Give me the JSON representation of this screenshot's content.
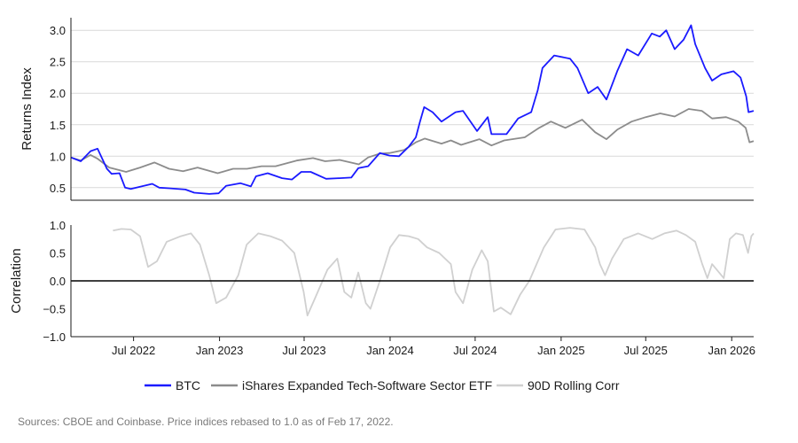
{
  "colors": {
    "btc": "#1a1aff",
    "etf": "#8c8c8c",
    "corr": "#d0d0d0",
    "grid": "#d9d9d9",
    "axis": "#1a1a1a",
    "zero_line": "#000000"
  },
  "footer": {
    "source": "Sources: CBOE and Coinbase. Price indices rebased to 1.0 as of Feb 17, 2022."
  },
  "chart_data": [
    {
      "type": "line",
      "ylabel": "Returns Index",
      "ylim": [
        0.3,
        3.2
      ],
      "yticks": [
        0.5,
        1.0,
        1.5,
        2.0,
        2.5,
        3.0
      ],
      "ytick_labels": [
        "0.5",
        "1.0",
        "1.5",
        "2.0",
        "2.5",
        "3.0"
      ],
      "xlim": [
        "2022-02-17",
        "2026-02-17"
      ],
      "grid": true,
      "series": [
        {
          "name": "BTC",
          "key": "btc",
          "points": [
            [
              "2022-02-17",
              0.98
            ],
            [
              "2022-03-10",
              0.92
            ],
            [
              "2022-03-31",
              1.08
            ],
            [
              "2022-04-15",
              1.12
            ],
            [
              "2022-05-05",
              0.8
            ],
            [
              "2022-05-15",
              0.72
            ],
            [
              "2022-06-01",
              0.73
            ],
            [
              "2022-06-13",
              0.5
            ],
            [
              "2022-06-25",
              0.48
            ],
            [
              "2022-08-10",
              0.56
            ],
            [
              "2022-08-25",
              0.5
            ],
            [
              "2022-09-15",
              0.49
            ],
            [
              "2022-10-20",
              0.47
            ],
            [
              "2022-11-08",
              0.42
            ],
            [
              "2022-12-10",
              0.4
            ],
            [
              "2022-12-30",
              0.41
            ],
            [
              "2023-01-15",
              0.53
            ],
            [
              "2023-02-15",
              0.57
            ],
            [
              "2023-03-09",
              0.52
            ],
            [
              "2023-03-20",
              0.68
            ],
            [
              "2023-04-14",
              0.73
            ],
            [
              "2023-05-15",
              0.65
            ],
            [
              "2023-06-05",
              0.63
            ],
            [
              "2023-06-25",
              0.75
            ],
            [
              "2023-07-15",
              0.75
            ],
            [
              "2023-08-17",
              0.64
            ],
            [
              "2023-09-15",
              0.65
            ],
            [
              "2023-10-10",
              0.66
            ],
            [
              "2023-10-25",
              0.81
            ],
            [
              "2023-11-15",
              0.84
            ],
            [
              "2023-12-10",
              1.05
            ],
            [
              "2023-12-31",
              1.01
            ],
            [
              "2024-01-20",
              1.0
            ],
            [
              "2024-02-10",
              1.15
            ],
            [
              "2024-02-25",
              1.3
            ],
            [
              "2024-03-05",
              1.55
            ],
            [
              "2024-03-14",
              1.78
            ],
            [
              "2024-04-01",
              1.7
            ],
            [
              "2024-04-20",
              1.55
            ],
            [
              "2024-05-20",
              1.7
            ],
            [
              "2024-06-05",
              1.72
            ],
            [
              "2024-07-05",
              1.4
            ],
            [
              "2024-07-28",
              1.62
            ],
            [
              "2024-08-05",
              1.35
            ],
            [
              "2024-09-06",
              1.35
            ],
            [
              "2024-10-01",
              1.6
            ],
            [
              "2024-10-29",
              1.7
            ],
            [
              "2024-11-12",
              2.05
            ],
            [
              "2024-11-22",
              2.4
            ],
            [
              "2024-12-17",
              2.6
            ],
            [
              "2025-01-20",
              2.55
            ],
            [
              "2025-02-05",
              2.4
            ],
            [
              "2025-02-28",
              2.0
            ],
            [
              "2025-03-20",
              2.1
            ],
            [
              "2025-04-08",
              1.9
            ],
            [
              "2025-05-01",
              2.35
            ],
            [
              "2025-05-22",
              2.7
            ],
            [
              "2025-06-15",
              2.6
            ],
            [
              "2025-07-14",
              2.95
            ],
            [
              "2025-07-31",
              2.9
            ],
            [
              "2025-08-14",
              3.0
            ],
            [
              "2025-09-01",
              2.7
            ],
            [
              "2025-09-20",
              2.85
            ],
            [
              "2025-10-06",
              3.08
            ],
            [
              "2025-10-15",
              2.78
            ],
            [
              "2025-11-05",
              2.4
            ],
            [
              "2025-11-20",
              2.2
            ],
            [
              "2025-12-10",
              2.3
            ],
            [
              "2026-01-05",
              2.35
            ],
            [
              "2026-01-20",
              2.25
            ],
            [
              "2026-02-01",
              1.95
            ],
            [
              "2026-02-06",
              1.7
            ],
            [
              "2026-02-17",
              1.72
            ]
          ]
        },
        {
          "name": "iShares Expanded Tech-Software Sector ETF",
          "key": "etf",
          "points": [
            [
              "2022-02-17",
              0.98
            ],
            [
              "2022-03-10",
              0.93
            ],
            [
              "2022-03-31",
              1.02
            ],
            [
              "2022-04-15",
              0.96
            ],
            [
              "2022-05-10",
              0.82
            ],
            [
              "2022-06-15",
              0.75
            ],
            [
              "2022-07-15",
              0.82
            ],
            [
              "2022-08-15",
              0.9
            ],
            [
              "2022-09-15",
              0.8
            ],
            [
              "2022-10-15",
              0.76
            ],
            [
              "2022-11-15",
              0.82
            ],
            [
              "2022-12-28",
              0.73
            ],
            [
              "2023-01-30",
              0.8
            ],
            [
              "2023-03-01",
              0.8
            ],
            [
              "2023-04-01",
              0.84
            ],
            [
              "2023-05-01",
              0.84
            ],
            [
              "2023-06-15",
              0.93
            ],
            [
              "2023-07-20",
              0.97
            ],
            [
              "2023-08-15",
              0.92
            ],
            [
              "2023-09-15",
              0.94
            ],
            [
              "2023-10-26",
              0.87
            ],
            [
              "2023-11-15",
              0.98
            ],
            [
              "2023-12-10",
              1.04
            ],
            [
              "2023-12-31",
              1.05
            ],
            [
              "2024-01-31",
              1.1
            ],
            [
              "2024-02-25",
              1.22
            ],
            [
              "2024-03-15",
              1.28
            ],
            [
              "2024-04-20",
              1.2
            ],
            [
              "2024-05-10",
              1.25
            ],
            [
              "2024-06-01",
              1.18
            ],
            [
              "2024-07-10",
              1.27
            ],
            [
              "2024-08-05",
              1.17
            ],
            [
              "2024-09-01",
              1.25
            ],
            [
              "2024-10-15",
              1.3
            ],
            [
              "2024-11-15",
              1.45
            ],
            [
              "2024-12-10",
              1.55
            ],
            [
              "2025-01-10",
              1.45
            ],
            [
              "2025-02-15",
              1.58
            ],
            [
              "2025-03-15",
              1.38
            ],
            [
              "2025-04-08",
              1.27
            ],
            [
              "2025-05-01",
              1.42
            ],
            [
              "2025-06-01",
              1.55
            ],
            [
              "2025-07-01",
              1.62
            ],
            [
              "2025-08-01",
              1.68
            ],
            [
              "2025-09-01",
              1.63
            ],
            [
              "2025-10-01",
              1.75
            ],
            [
              "2025-10-29",
              1.72
            ],
            [
              "2025-11-20",
              1.6
            ],
            [
              "2025-12-20",
              1.62
            ],
            [
              "2026-01-15",
              1.55
            ],
            [
              "2026-01-31",
              1.45
            ],
            [
              "2026-02-08",
              1.22
            ],
            [
              "2026-02-17",
              1.24
            ]
          ]
        }
      ]
    },
    {
      "type": "line",
      "ylabel": "Correlation",
      "ylim": [
        -1.0,
        1.0
      ],
      "yticks": [
        -1.0,
        -0.5,
        0.0,
        0.5,
        1.0
      ],
      "ytick_labels": [
        "−1.0",
        "−0.5",
        "0.0",
        "0.5",
        "1.0"
      ],
      "xlim": [
        "2022-02-17",
        "2026-02-17"
      ],
      "xticks": [
        "2022-07-01",
        "2023-01-01",
        "2023-07-01",
        "2024-01-01",
        "2024-07-01",
        "2025-01-01",
        "2025-07-01",
        "2026-01-01"
      ],
      "xtick_labels": [
        "Jul 2022",
        "Jan 2023",
        "Jul 2023",
        "Jan 2024",
        "Jul 2024",
        "Jan 2025",
        "Jul 2025",
        "Jan 2026"
      ],
      "series": [
        {
          "name": "90D Rolling Corr",
          "key": "corr",
          "points": [
            [
              "2022-05-18",
              0.9
            ],
            [
              "2022-06-05",
              0.93
            ],
            [
              "2022-06-25",
              0.92
            ],
            [
              "2022-07-15",
              0.8
            ],
            [
              "2022-08-01",
              0.25
            ],
            [
              "2022-08-20",
              0.35
            ],
            [
              "2022-09-10",
              0.7
            ],
            [
              "2022-10-10",
              0.8
            ],
            [
              "2022-11-01",
              0.85
            ],
            [
              "2022-11-20",
              0.65
            ],
            [
              "2022-12-10",
              0.1
            ],
            [
              "2022-12-25",
              -0.4
            ],
            [
              "2023-01-15",
              -0.3
            ],
            [
              "2023-02-10",
              0.1
            ],
            [
              "2023-02-28",
              0.65
            ],
            [
              "2023-03-25",
              0.85
            ],
            [
              "2023-04-20",
              0.8
            ],
            [
              "2023-05-15",
              0.72
            ],
            [
              "2023-06-10",
              0.5
            ],
            [
              "2023-06-30",
              -0.2
            ],
            [
              "2023-07-08",
              -0.62
            ],
            [
              "2023-07-25",
              -0.3
            ],
            [
              "2023-08-20",
              0.2
            ],
            [
              "2023-09-10",
              0.4
            ],
            [
              "2023-09-25",
              -0.2
            ],
            [
              "2023-10-10",
              -0.3
            ],
            [
              "2023-10-25",
              0.15
            ],
            [
              "2023-11-10",
              -0.4
            ],
            [
              "2023-11-20",
              -0.5
            ],
            [
              "2023-12-10",
              0.0
            ],
            [
              "2024-01-01",
              0.6
            ],
            [
              "2024-01-20",
              0.82
            ],
            [
              "2024-02-10",
              0.8
            ],
            [
              "2024-03-01",
              0.75
            ],
            [
              "2024-03-20",
              0.6
            ],
            [
              "2024-04-15",
              0.5
            ],
            [
              "2024-05-10",
              0.3
            ],
            [
              "2024-05-20",
              -0.2
            ],
            [
              "2024-06-05",
              -0.4
            ],
            [
              "2024-06-25",
              0.2
            ],
            [
              "2024-07-15",
              0.55
            ],
            [
              "2024-07-28",
              0.35
            ],
            [
              "2024-08-10",
              -0.55
            ],
            [
              "2024-08-25",
              -0.48
            ],
            [
              "2024-09-15",
              -0.6
            ],
            [
              "2024-10-05",
              -0.25
            ],
            [
              "2024-10-25",
              0.0
            ],
            [
              "2024-11-25",
              0.6
            ],
            [
              "2024-12-20",
              0.92
            ],
            [
              "2025-01-20",
              0.95
            ],
            [
              "2025-02-20",
              0.92
            ],
            [
              "2025-03-15",
              0.6
            ],
            [
              "2025-03-25",
              0.3
            ],
            [
              "2025-04-05",
              0.1
            ],
            [
              "2025-04-20",
              0.4
            ],
            [
              "2025-05-15",
              0.75
            ],
            [
              "2025-06-15",
              0.85
            ],
            [
              "2025-07-15",
              0.75
            ],
            [
              "2025-08-10",
              0.85
            ],
            [
              "2025-09-05",
              0.9
            ],
            [
              "2025-09-25",
              0.82
            ],
            [
              "2025-10-15",
              0.7
            ],
            [
              "2025-10-30",
              0.3
            ],
            [
              "2025-11-10",
              0.05
            ],
            [
              "2025-11-20",
              0.3
            ],
            [
              "2025-12-05",
              0.15
            ],
            [
              "2025-12-15",
              0.05
            ],
            [
              "2025-12-28",
              0.75
            ],
            [
              "2026-01-10",
              0.85
            ],
            [
              "2026-01-25",
              0.82
            ],
            [
              "2026-02-05",
              0.5
            ],
            [
              "2026-02-12",
              0.8
            ],
            [
              "2026-02-17",
              0.85
            ]
          ]
        }
      ]
    }
  ],
  "legend": {
    "placement": "bottom-center",
    "entries": [
      {
        "label": "BTC",
        "key": "btc"
      },
      {
        "label": "iShares Expanded Tech-Software Sector ETF",
        "key": "etf"
      },
      {
        "label": "90D Rolling Corr",
        "key": "corr"
      }
    ]
  }
}
